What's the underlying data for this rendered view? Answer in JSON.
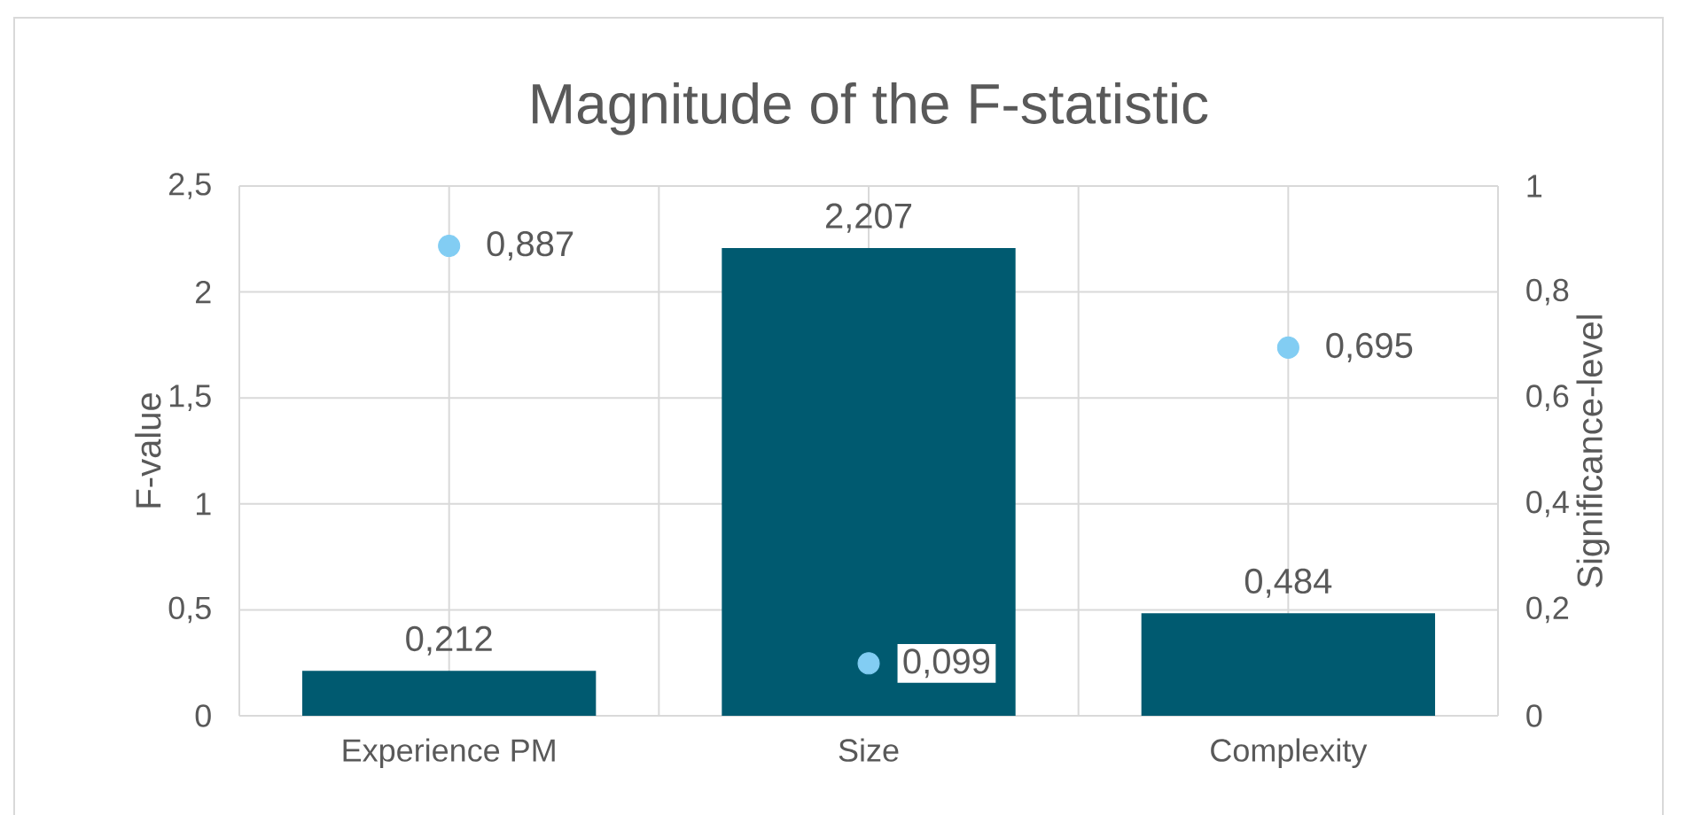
{
  "chart_data": {
    "type": "bar",
    "title": "Magnitude of the F-statistic",
    "ylabel": "F-value",
    "y2label": "Significance-level",
    "categories": [
      "Experience PM",
      "Size",
      "Complexity"
    ],
    "series": [
      {
        "color": "#005a70",
        "values": [
          0.212,
          2.207,
          0.484
        ],
        "value_labels": [
          "0,212",
          "2,207",
          "0,484"
        ]
      },
      {
        "type": "scatter",
        "axis": "y2",
        "marker": "circle",
        "color": "#82cdf3",
        "values": [
          0.887,
          0.099,
          0.695
        ],
        "value_labels": [
          "0,887",
          "0,099",
          "0,695"
        ]
      }
    ],
    "ylim": [
      0,
      2.5
    ],
    "yticks": [
      0,
      {
        "value": 0.5,
        "label": "0,5"
      },
      1,
      {
        "value": 1.5,
        "label": "1,5"
      },
      2,
      {
        "value": 2.5,
        "label": "2,5"
      }
    ],
    "y2lim": [
      0,
      1
    ],
    "y2ticks": [
      0,
      {
        "value": 0.2,
        "label": "0,2"
      },
      {
        "value": 0.4,
        "label": "0,4"
      },
      {
        "value": 0.6,
        "label": "0,6"
      },
      {
        "value": 0.8,
        "label": "0,8"
      },
      1
    ],
    "grid": true
  }
}
